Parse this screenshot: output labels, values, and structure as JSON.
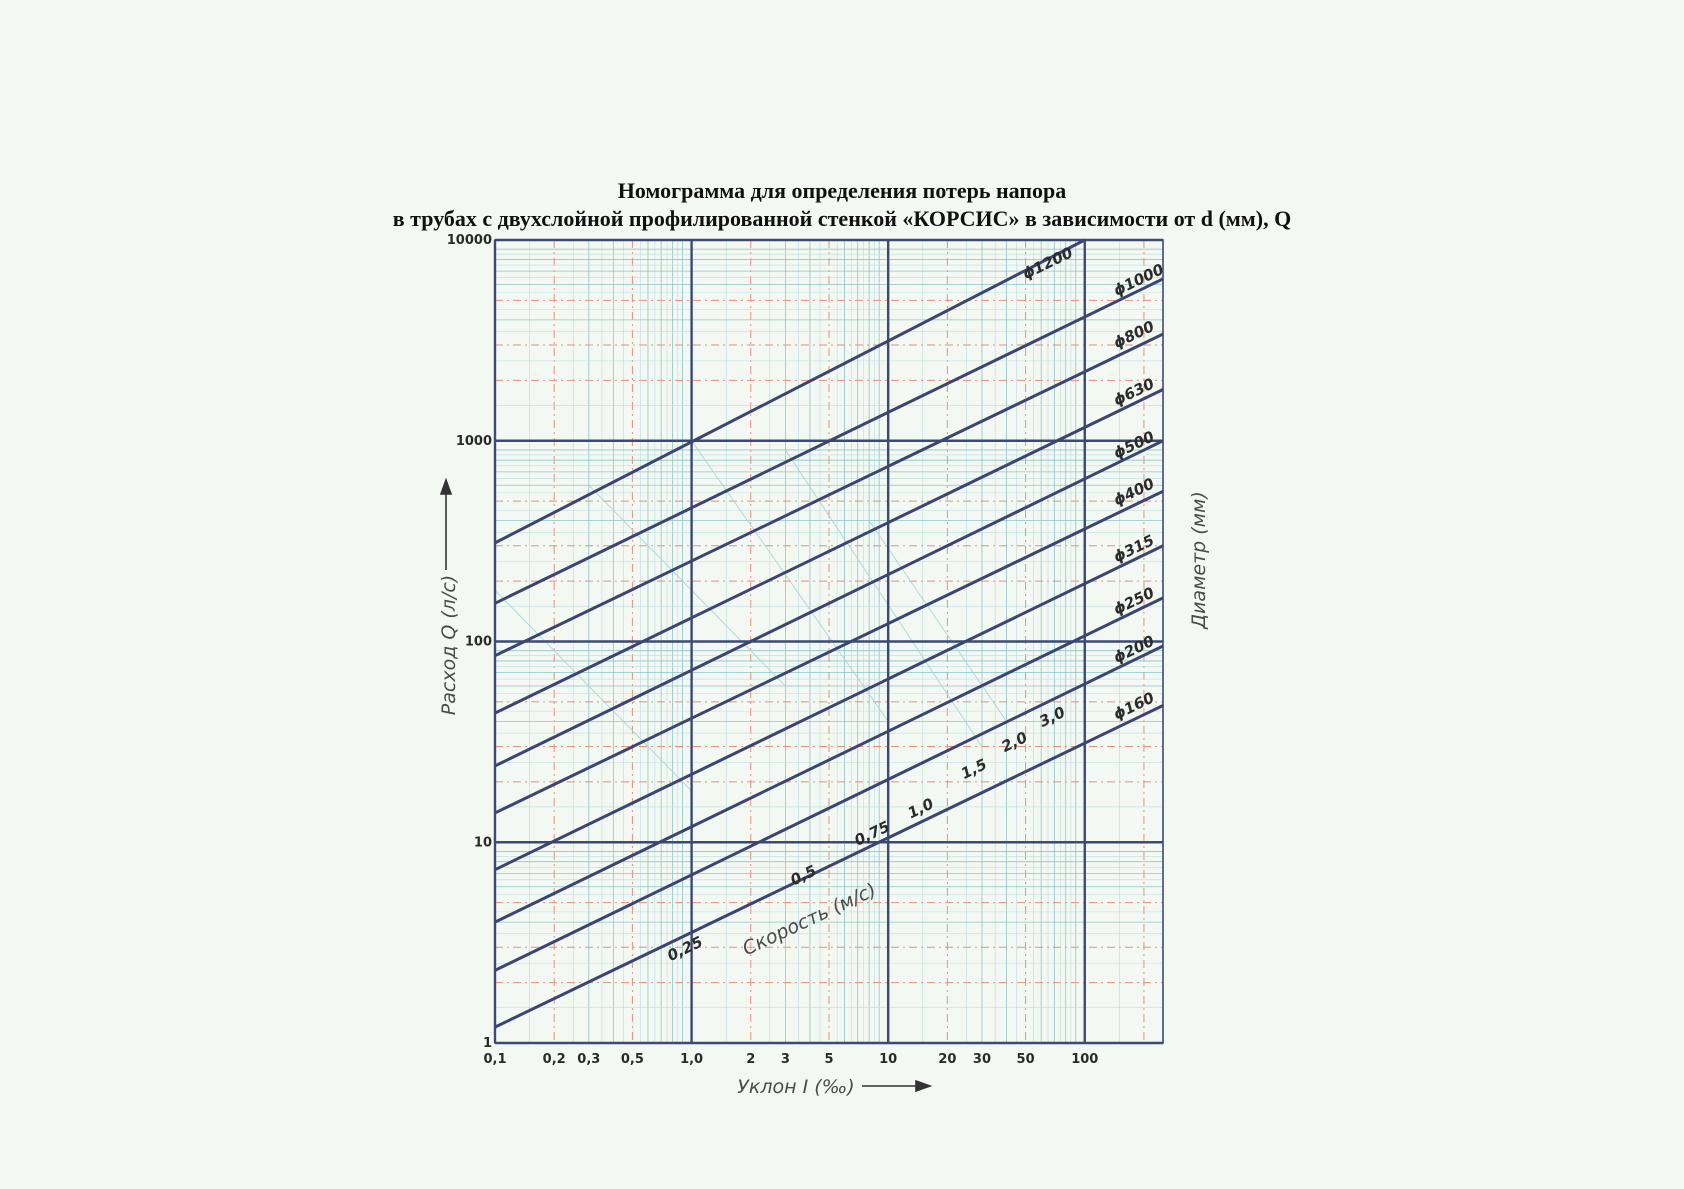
{
  "title_line1": "Номограмма для определения потерь напора",
  "title_line2": "в трубах с двухслойной  профилированной стенкой «КОРСИС» в зависимости от d (мм), Q",
  "chart_data": {
    "type": "line",
    "xscale": "log",
    "yscale": "log",
    "xlim": [
      0.1,
      250
    ],
    "ylim": [
      1,
      10000
    ],
    "xlabel": "Уклон I (‰)",
    "ylabel": "Расход Q (л/с)",
    "right_label": "Диаметр (мм)",
    "velocity_label": "Скорость (м/с)",
    "x_ticks": [
      {
        "value": 0.1,
        "label": "0,1"
      },
      {
        "value": 0.2,
        "label": "0,2"
      },
      {
        "value": 0.3,
        "label": "0,3"
      },
      {
        "value": 0.5,
        "label": "0,5"
      },
      {
        "value": 1,
        "label": "1,0"
      },
      {
        "value": 2,
        "label": "2"
      },
      {
        "value": 3,
        "label": "3"
      },
      {
        "value": 5,
        "label": "5"
      },
      {
        "value": 10,
        "label": "10"
      },
      {
        "value": 20,
        "label": "20"
      },
      {
        "value": 30,
        "label": "30"
      },
      {
        "value": 50,
        "label": "50"
      },
      {
        "value": 100,
        "label": "100"
      }
    ],
    "y_ticks": [
      {
        "value": 1,
        "label": "1"
      },
      {
        "value": 10,
        "label": "10"
      },
      {
        "value": 100,
        "label": "100"
      },
      {
        "value": 1000,
        "label": "1000"
      },
      {
        "value": 10000,
        "label": "10000"
      }
    ],
    "series": [
      {
        "name": "ϕ160",
        "x": [
          0.1,
          250
        ],
        "y": [
          1.2,
          48
        ]
      },
      {
        "name": "ϕ200",
        "x": [
          0.1,
          250
        ],
        "y": [
          2.3,
          95
        ]
      },
      {
        "name": "ϕ250",
        "x": [
          0.1,
          250
        ],
        "y": [
          4.0,
          165
        ]
      },
      {
        "name": "ϕ315",
        "x": [
          0.1,
          250
        ],
        "y": [
          7.3,
          300
        ]
      },
      {
        "name": "ϕ400",
        "x": [
          0.1,
          250
        ],
        "y": [
          14,
          560
        ]
      },
      {
        "name": "ϕ500",
        "x": [
          0.1,
          250
        ],
        "y": [
          24,
          1000
        ]
      },
      {
        "name": "ϕ630",
        "x": [
          0.1,
          250
        ],
        "y": [
          44,
          1800
        ]
      },
      {
        "name": "ϕ800",
        "x": [
          0.1,
          250
        ],
        "y": [
          85,
          3400
        ]
      },
      {
        "name": "ϕ1000",
        "x": [
          0.1,
          250
        ],
        "y": [
          155,
          6400
        ]
      },
      {
        "name": "ϕ1200",
        "x": [
          0.1,
          100
        ],
        "y": [
          310,
          10000
        ]
      }
    ],
    "velocity_marks": [
      {
        "label": "0,25",
        "x": 0.95,
        "y": 2.8
      },
      {
        "label": "0,5",
        "x": 3.8,
        "y": 6.5
      },
      {
        "label": "0,75",
        "x": 8.5,
        "y": 10.5
      },
      {
        "label": "1,0",
        "x": 15,
        "y": 14
      },
      {
        "label": "1,5",
        "x": 28,
        "y": 22
      },
      {
        "label": "2,0",
        "x": 45,
        "y": 30
      },
      {
        "label": "3,0",
        "x": 70,
        "y": 40
      }
    ],
    "grid": true
  }
}
